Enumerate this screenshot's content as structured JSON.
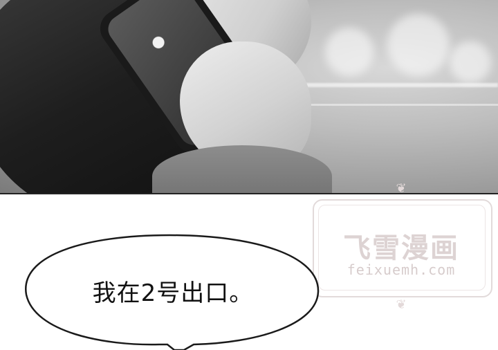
{
  "panel_top": {
    "description_icon": "photo-woman-phone"
  },
  "watermark": {
    "title": "飞雪漫画",
    "url": "feixuemh.com"
  },
  "speech_bubble": {
    "text": "我在2号出口。"
  }
}
